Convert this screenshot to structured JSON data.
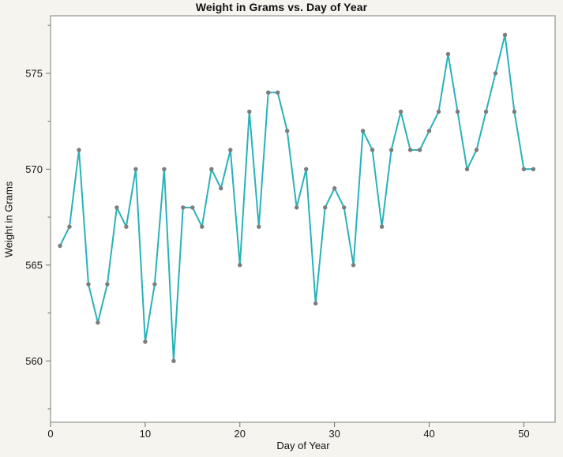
{
  "chart_data": {
    "type": "line",
    "title": "Weight in Grams vs. Day of Year",
    "xlabel": "Day of Year",
    "ylabel": "Weight in Grams",
    "x": [
      1,
      2,
      3,
      4,
      5,
      6,
      7,
      8,
      9,
      10,
      11,
      12,
      13,
      14,
      15,
      16,
      17,
      18,
      19,
      20,
      21,
      22,
      23,
      24,
      25,
      26,
      27,
      28,
      29,
      30,
      31,
      32,
      33,
      34,
      35,
      36,
      37,
      38,
      39,
      40,
      41,
      42,
      43,
      44,
      45,
      46,
      47,
      48,
      49,
      50,
      51
    ],
    "values": [
      566,
      567,
      571,
      564,
      562,
      564,
      568,
      567,
      570,
      561,
      564,
      570,
      560,
      568,
      568,
      567,
      570,
      569,
      571,
      565,
      573,
      567,
      574,
      574,
      572,
      568,
      570,
      563,
      568,
      569,
      568,
      565,
      572,
      571,
      567,
      571,
      573,
      571,
      571,
      572,
      573,
      576,
      573,
      570,
      571,
      573,
      575,
      577,
      573,
      570,
      570
    ],
    "xlim": [
      0,
      53.3
    ],
    "ylim": [
      556.8,
      578.0
    ],
    "x_ticks": [
      0,
      10,
      20,
      30,
      40,
      50
    ],
    "y_ticks": [
      560,
      565,
      570,
      575
    ],
    "y_minor_ticks": [
      557.5,
      562.5,
      567.5,
      572.5,
      577.5
    ],
    "grid": false,
    "legend": "none",
    "colors": {
      "line": "#29b2b9",
      "marker": "#7d7d7d",
      "page_background": "#f5f4ef",
      "plot_background": "#ffffff",
      "frame": "#9c9c97",
      "tick": "#6e6e6e",
      "text": "#111111"
    }
  }
}
